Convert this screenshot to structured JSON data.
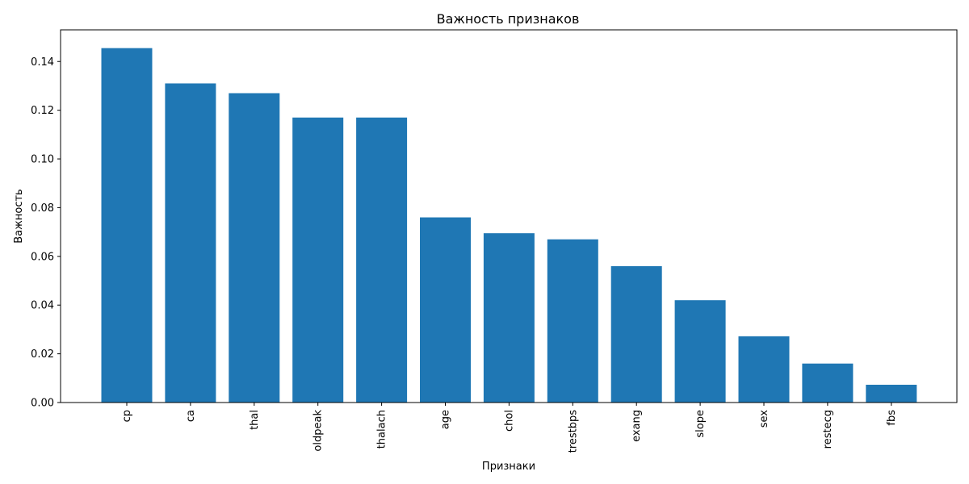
{
  "chart_data": {
    "type": "bar",
    "title": "Важность признаков",
    "xlabel": "Признаки",
    "ylabel": "Важность",
    "categories": [
      "cp",
      "ca",
      "thal",
      "oldpeak",
      "thalach",
      "age",
      "chol",
      "trestbps",
      "exang",
      "slope",
      "sex",
      "restecg",
      "fbs"
    ],
    "values": [
      0.1455,
      0.131,
      0.127,
      0.117,
      0.117,
      0.076,
      0.0695,
      0.067,
      0.056,
      0.042,
      0.0272,
      0.016,
      0.0073
    ],
    "ylim": [
      0,
      0.153
    ],
    "yticks": [
      "0.00",
      "0.02",
      "0.04",
      "0.06",
      "0.08",
      "0.10",
      "0.12",
      "0.14"
    ],
    "bar_color": "#1f77b4",
    "grid": false,
    "legend": "none"
  }
}
